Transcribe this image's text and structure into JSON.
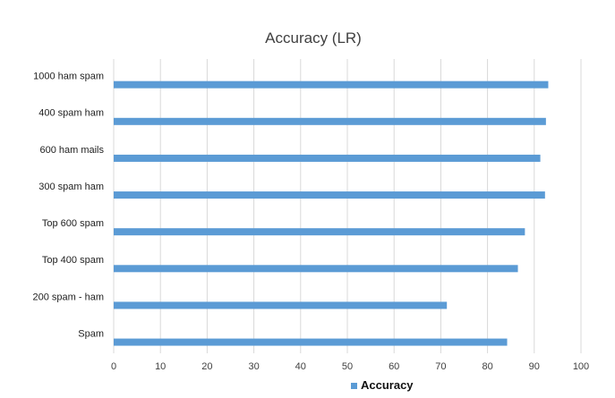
{
  "chart_data": {
    "type": "bar",
    "orientation": "horizontal",
    "title": "Accuracy (LR)",
    "xlabel": "",
    "ylabel": "",
    "categories": [
      "1000 ham spam",
      "400 spam ham",
      "600 ham mails",
      "300 spam ham",
      "Top 600 spam",
      "Top 400 spam",
      "200 spam  - ham",
      "Spam"
    ],
    "series": [
      {
        "name": "Accuracy",
        "color": "#5b9bd5",
        "values": [
          93,
          92.5,
          91.3,
          92.3,
          88,
          86.5,
          71.3,
          84.2
        ]
      }
    ],
    "xlim": [
      0,
      100
    ],
    "xticks": [
      0,
      10,
      20,
      30,
      40,
      50,
      60,
      70,
      80,
      90,
      100
    ],
    "grid": "vertical",
    "legend": {
      "position": "bottom",
      "label": "Accuracy",
      "color": "#5b9bd5"
    }
  }
}
